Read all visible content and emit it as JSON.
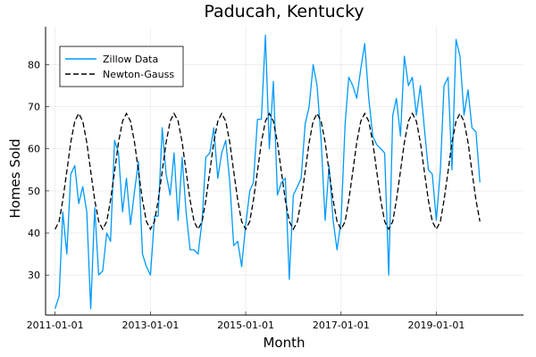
{
  "chart_data": {
    "type": "line",
    "title": "Paducah, Kentucky",
    "xlabel": "Month",
    "ylabel": "Homes Sold",
    "x_tick_labels": [
      "2011-01-01",
      "2013-01-01",
      "2015-01-01",
      "2017-01-01",
      "2019-01-01"
    ],
    "x_tick_values": [
      "2011-01-01",
      "2013-01-01",
      "2015-01-01",
      "2017-01-01",
      "2019-01-01"
    ],
    "y_ticks": [
      30,
      40,
      50,
      60,
      70,
      80
    ],
    "xlim": [
      "2010-10-20",
      "2020-10-30"
    ],
    "ylim": [
      20.5,
      89
    ],
    "grid": true,
    "legend_position": "top-left",
    "colors": {
      "zillow": "#009AFA",
      "newton": "#000000"
    },
    "series": [
      {
        "name": "Zillow Data",
        "style": "solid",
        "x_start": "2011-01",
        "values": [
          22,
          25,
          45,
          35,
          54,
          56,
          47,
          51,
          45,
          22,
          46,
          30,
          31,
          40,
          38,
          62,
          59,
          45,
          53,
          42,
          50,
          57,
          35,
          32,
          30,
          44,
          44,
          65,
          54,
          49,
          59,
          43,
          58,
          45,
          36,
          36,
          35,
          43,
          58,
          59,
          65,
          53,
          59,
          62,
          52,
          37,
          38,
          32,
          42,
          50,
          52,
          67,
          67,
          87,
          60,
          76,
          49,
          52,
          53,
          29,
          49,
          51,
          53,
          66,
          70,
          80,
          75,
          62,
          43,
          56,
          43,
          36,
          43,
          66,
          77,
          75,
          72,
          79,
          85,
          72,
          63,
          61,
          60,
          59,
          30,
          68,
          72,
          63,
          82,
          75,
          77,
          68,
          75,
          65,
          55,
          54,
          43,
          55,
          75,
          77,
          55,
          86,
          82,
          68,
          74,
          65,
          64,
          52
        ]
      },
      {
        "name": "Newton-Gauss",
        "style": "dashed",
        "x_start": "2011-01",
        "model": "periodic",
        "period_months": 12,
        "peak_month": 7,
        "min": 40.9,
        "max": 68.4,
        "months": 108
      }
    ]
  }
}
